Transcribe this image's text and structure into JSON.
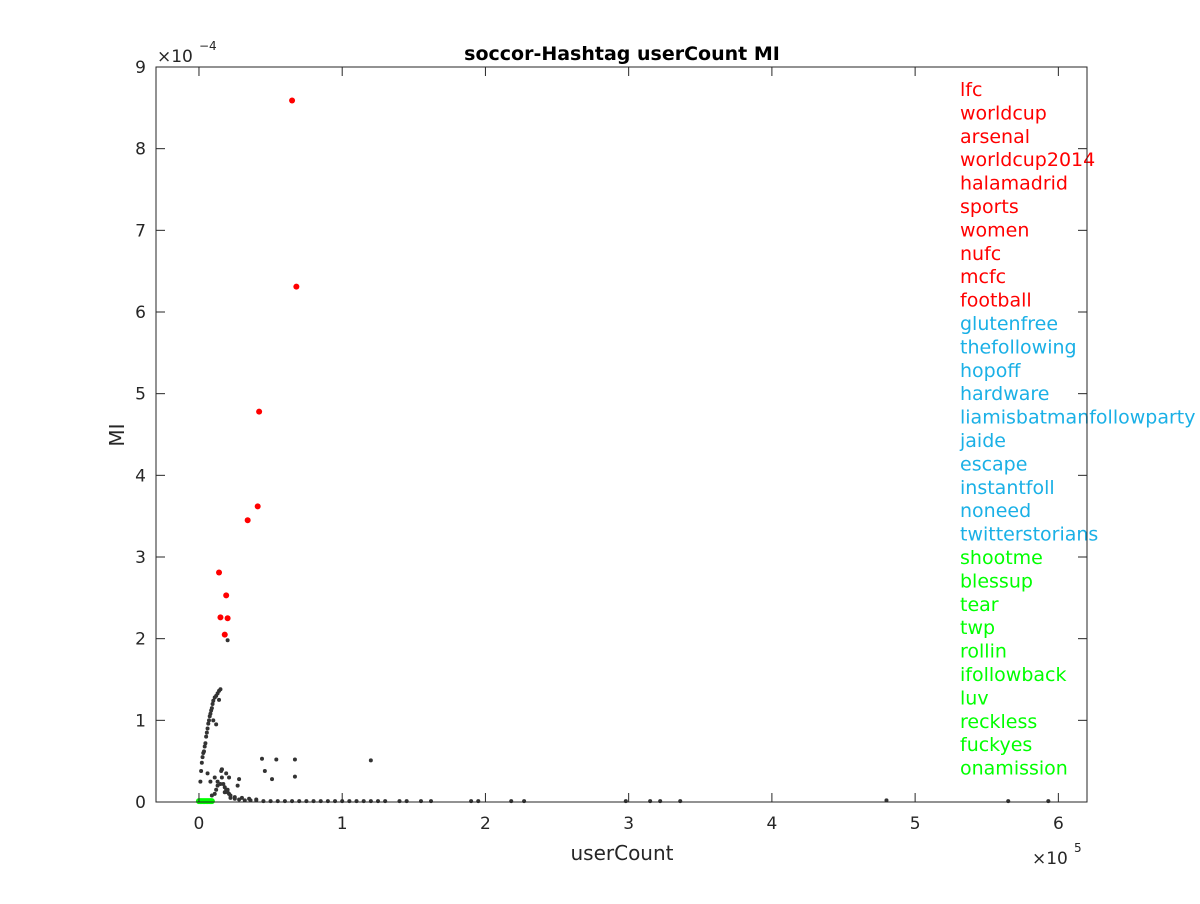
{
  "chart_data": {
    "type": "scatter",
    "title": "soccor-Hashtag userCount MI",
    "xlabel": "userCount",
    "ylabel": "MI",
    "x_multiplier_base": "×10",
    "x_multiplier_exp": "5",
    "y_multiplier_base": "×10",
    "y_multiplier_exp": "−4",
    "xlim": [
      -0.3,
      6.2
    ],
    "ylim": [
      0,
      9
    ],
    "xticks": [
      0,
      1,
      2,
      3,
      4,
      5,
      6
    ],
    "yticks": [
      0,
      1,
      2,
      3,
      4,
      5,
      6,
      7,
      8,
      9
    ],
    "grid": false,
    "colors": {
      "background": "#ffffff",
      "background_points": "#333333",
      "top": "#ff0000",
      "random": "#1ab0e6",
      "bottom": "#00ff00",
      "axes": "#262626"
    },
    "series": [
      {
        "color": "#333333",
        "x": [
          0.01,
          0.015,
          0.02,
          0.025,
          0.03,
          0.035,
          0.04,
          0.045,
          0.05,
          0.055,
          0.06,
          0.065,
          0.07,
          0.075,
          0.08,
          0.085,
          0.09,
          0.095,
          0.1,
          0.11,
          0.12,
          0.13,
          0.14,
          0.15,
          0.16,
          0.17,
          0.18,
          0.19,
          0.2,
          0.21,
          0.22,
          0.25,
          0.28,
          0.32,
          0.36,
          0.4,
          0.45,
          0.5,
          0.55,
          0.6,
          0.65,
          0.7,
          0.75,
          0.8,
          0.85,
          0.9,
          0.95,
          1.0,
          1.05,
          1.1,
          1.15,
          1.2,
          1.25,
          1.3,
          1.4,
          1.45,
          1.55,
          1.62,
          1.9,
          1.95,
          2.18,
          2.27,
          2.98,
          3.15,
          3.22,
          3.36,
          4.8,
          5.65,
          5.93,
          0.06,
          0.08,
          0.1,
          0.12,
          0.14,
          0.155,
          0.16,
          0.13,
          0.12,
          0.11,
          0.09,
          0.11,
          0.13,
          0.15,
          0.2,
          0.27,
          0.28,
          0.44,
          0.46,
          0.51,
          0.54,
          0.67,
          0.67,
          1.2,
          0.2,
          0.18,
          0.22,
          0.25,
          0.3,
          0.35,
          0.4,
          0.16,
          0.19,
          0.21
        ],
        "y": [
          0.25,
          0.38,
          0.48,
          0.55,
          0.6,
          0.62,
          0.68,
          0.72,
          0.8,
          0.85,
          0.9,
          0.96,
          1.0,
          1.05,
          1.08,
          1.12,
          1.15,
          1.2,
          1.24,
          1.28,
          1.3,
          1.33,
          1.36,
          1.38,
          0.3,
          0.22,
          0.18,
          0.15,
          0.12,
          0.1,
          0.05,
          0.04,
          0.03,
          0.02,
          0.02,
          0.02,
          0.01,
          0.01,
          0.01,
          0.01,
          0.01,
          0.01,
          0.01,
          0.01,
          0.01,
          0.01,
          0.01,
          0.01,
          0.01,
          0.01,
          0.01,
          0.01,
          0.01,
          0.01,
          0.01,
          0.01,
          0.01,
          0.01,
          0.01,
          0.01,
          0.01,
          0.01,
          0.01,
          0.01,
          0.01,
          0.01,
          0.02,
          0.01,
          0.01,
          0.35,
          0.25,
          1.0,
          0.95,
          1.25,
          0.38,
          0.4,
          0.2,
          0.15,
          0.1,
          0.08,
          0.3,
          0.25,
          0.22,
          1.98,
          0.2,
          0.28,
          0.53,
          0.38,
          0.28,
          0.52,
          0.52,
          0.31,
          0.51,
          0.15,
          0.12,
          0.08,
          0.06,
          0.05,
          0.04,
          0.03,
          0.4,
          0.35,
          0.3
        ]
      },
      {
        "color": "#ff0000",
        "x": [
          0.65,
          0.68,
          0.42,
          0.41,
          0.34,
          0.14,
          0.19,
          0.15,
          0.2,
          0.18
        ],
        "y": [
          8.59,
          6.31,
          4.78,
          3.62,
          3.45,
          2.81,
          2.53,
          2.26,
          2.25,
          2.05
        ]
      },
      {
        "color": "#00ff00",
        "x": [
          0.0,
          0.01,
          0.02,
          0.03,
          0.04,
          0.05,
          0.06,
          0.07,
          0.08,
          0.09
        ],
        "y": [
          0.01,
          0.01,
          0.01,
          0.01,
          0.01,
          0.01,
          0.01,
          0.01,
          0.01,
          0.01
        ]
      }
    ],
    "labels": [
      {
        "text": "lfc",
        "group": "top"
      },
      {
        "text": "worldcup",
        "group": "top"
      },
      {
        "text": "arsenal",
        "group": "top"
      },
      {
        "text": "worldcup2014",
        "group": "top"
      },
      {
        "text": "halamadrid",
        "group": "top"
      },
      {
        "text": "sports",
        "group": "top"
      },
      {
        "text": "women",
        "group": "top"
      },
      {
        "text": "nufc",
        "group": "top"
      },
      {
        "text": "mcfc",
        "group": "top"
      },
      {
        "text": "football",
        "group": "top"
      },
      {
        "text": "glutenfree",
        "group": "random"
      },
      {
        "text": "thefollowing",
        "group": "random"
      },
      {
        "text": "hopoff",
        "group": "random"
      },
      {
        "text": "hardware",
        "group": "random"
      },
      {
        "text": "liamisbatmanfollowparty",
        "group": "random"
      },
      {
        "text": "jaide",
        "group": "random"
      },
      {
        "text": "escape",
        "group": "random"
      },
      {
        "text": "instantfoll",
        "group": "random"
      },
      {
        "text": "noneed",
        "group": "random"
      },
      {
        "text": "twitterstorians",
        "group": "random"
      },
      {
        "text": "shootme",
        "group": "bottom"
      },
      {
        "text": "blessup",
        "group": "bottom"
      },
      {
        "text": "tear",
        "group": "bottom"
      },
      {
        "text": "twp",
        "group": "bottom"
      },
      {
        "text": "rollin",
        "group": "bottom"
      },
      {
        "text": "ifollowback",
        "group": "bottom"
      },
      {
        "text": "luv",
        "group": "bottom"
      },
      {
        "text": "reckless",
        "group": "bottom"
      },
      {
        "text": "fuckyes",
        "group": "bottom"
      },
      {
        "text": "onamission",
        "group": "bottom"
      }
    ]
  }
}
